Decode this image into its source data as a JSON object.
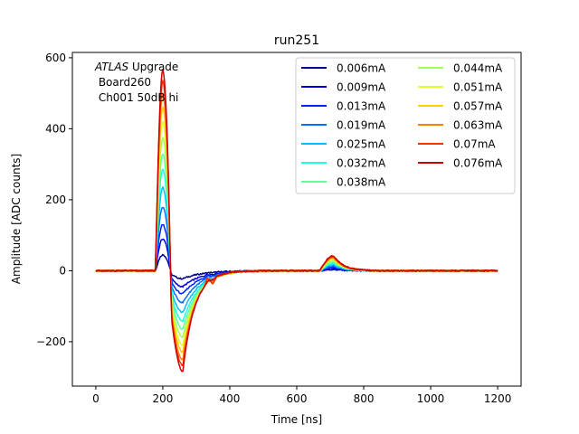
{
  "chart_data": {
    "type": "line",
    "title": "run251",
    "xlabel": "Time [ns]",
    "ylabel": "Amplitude [ADC counts]",
    "xlim": [
      -70,
      1270
    ],
    "ylim": [
      -325,
      615
    ],
    "xticks": [
      0,
      200,
      400,
      600,
      800,
      1000,
      1200
    ],
    "xtick_labels": [
      "0",
      "200",
      "400",
      "600",
      "800",
      "1000",
      "1200"
    ],
    "yticks": [
      -200,
      0,
      200,
      400,
      600
    ],
    "ytick_labels": [
      "−200",
      "0",
      "200",
      "400",
      "600"
    ],
    "grid": false,
    "legend_placement": "top-right",
    "legend_columns": 2,
    "annotation": {
      "line1_italic": "ATLAS",
      "line1_rest": " Upgrade",
      "line2": " Board260",
      "line3": " Ch001 50dB hi"
    },
    "waveform_shape": {
      "baseline_until_ns": 178,
      "peak_time_ns": 200,
      "undershoot_time_ns": 260,
      "undershoot_to_peak_ratio": -0.5,
      "bump_time_ns": 710,
      "bump_to_peak_ratio": 0.075
    },
    "series": [
      {
        "name": "0.006mA",
        "color": "#00008f",
        "peak": 45
      },
      {
        "name": "0.009mA",
        "color": "#0000dd",
        "peak": 90
      },
      {
        "name": "0.013mA",
        "color": "#0020ff",
        "peak": 130
      },
      {
        "name": "0.019mA",
        "color": "#0070ff",
        "peak": 180
      },
      {
        "name": "0.025mA",
        "color": "#00c0ff",
        "peak": 235
      },
      {
        "name": "0.032mA",
        "color": "#20ffdf",
        "peak": 285
      },
      {
        "name": "0.038mA",
        "color": "#60ff9f",
        "peak": 330
      },
      {
        "name": "0.044mA",
        "color": "#a0ff60",
        "peak": 375
      },
      {
        "name": "0.051mA",
        "color": "#dfff20",
        "peak": 420
      },
      {
        "name": "0.057mA",
        "color": "#ffcf00",
        "peak": 460
      },
      {
        "name": "0.063mA",
        "color": "#ff7f00",
        "peak": 500
      },
      {
        "name": "0.07mA",
        "color": "#ff3000",
        "peak": 535
      },
      {
        "name": "0.076mA",
        "color": "#d00000",
        "peak": 565
      }
    ]
  }
}
